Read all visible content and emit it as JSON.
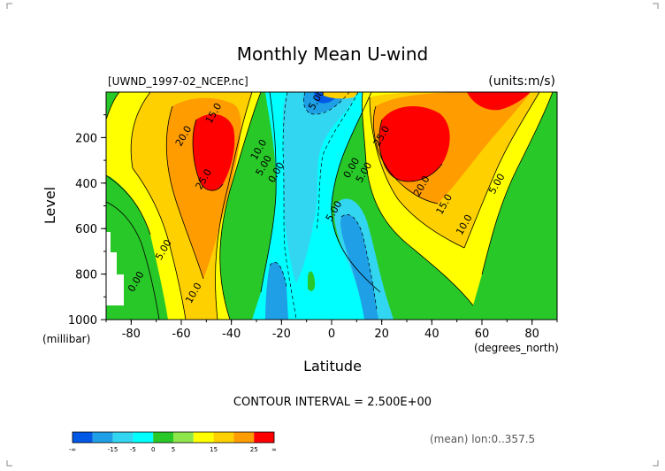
{
  "chart_data": {
    "type": "heatmap",
    "title": "Monthly Mean U-wind",
    "subtitle_left": "[UWND_1997-02_NCEP.nc]",
    "subtitle_right": "(units:m/s)",
    "xlabel": "Latitude",
    "x_units": "(degrees_north)",
    "ylabel": "Level",
    "y_units": "(millibar)",
    "x_ticks": [
      -80,
      -60,
      -40,
      -20,
      0,
      20,
      40,
      60,
      80
    ],
    "x_tick_labels": [
      "-80",
      "-60",
      "-40",
      "-20",
      "0",
      "20",
      "40",
      "60",
      "80"
    ],
    "xlim": [
      -90,
      90
    ],
    "y_ticks": [
      200,
      400,
      600,
      800,
      1000
    ],
    "y_tick_labels": [
      "200",
      "400",
      "600",
      "800",
      "1000"
    ],
    "ylim": [
      1000,
      0
    ],
    "contour_interval_text": "CONTOUR INTERVAL = 2.500E+00",
    "mean_note": "(mean) lon:0..357.5",
    "contour_labels": [
      {
        "text": "15.0",
        "x": -46,
        "y": 100
      },
      {
        "text": "20.0",
        "x": -58,
        "y": 200
      },
      {
        "text": "25.0",
        "x": -50,
        "y": 390
      },
      {
        "text": "10.0",
        "x": -28,
        "y": 260
      },
      {
        "text": "5.00",
        "x": -26,
        "y": 330
      },
      {
        "text": "0.00",
        "x": -21,
        "y": 360
      },
      {
        "text": "5.00",
        "x": -66,
        "y": 700
      },
      {
        "text": "0.00",
        "x": -77,
        "y": 840
      },
      {
        "text": "10.0",
        "x": -54,
        "y": 890
      },
      {
        "text": "0.00",
        "x": 9,
        "y": 340
      },
      {
        "text": "5.00",
        "x": 14,
        "y": 360
      },
      {
        "text": "5.00",
        "x": 2,
        "y": 530
      },
      {
        "text": "25.0",
        "x": 21,
        "y": 200
      },
      {
        "text": "20.0",
        "x": 37,
        "y": 420
      },
      {
        "text": "15.0",
        "x": 46,
        "y": 500
      },
      {
        "text": "10.0",
        "x": 54,
        "y": 590
      },
      {
        "text": "5.00",
        "x": 67,
        "y": 410
      },
      {
        "text": "5.00",
        "x": -5,
        "y": 40
      }
    ],
    "colorbar": {
      "labels": [
        "-∞",
        "-15",
        "-5",
        "0",
        "5",
        "15",
        "25",
        "∞"
      ],
      "colors": [
        "#0058e6",
        "#1e9fe6",
        "#33d6f0",
        "#00ffff",
        "#28c828",
        "#8fe64b",
        "#ffff00",
        "#ffd000",
        "#ff9c00",
        "#ff0000"
      ]
    },
    "levels": [
      "<-15",
      "-15..-10",
      "-10..-5",
      "-5..0",
      "0..5",
      "5..10",
      "10..15",
      "15..20",
      "20..25",
      ">25"
    ],
    "legend_placement": "bottom-left",
    "grid": false
  }
}
